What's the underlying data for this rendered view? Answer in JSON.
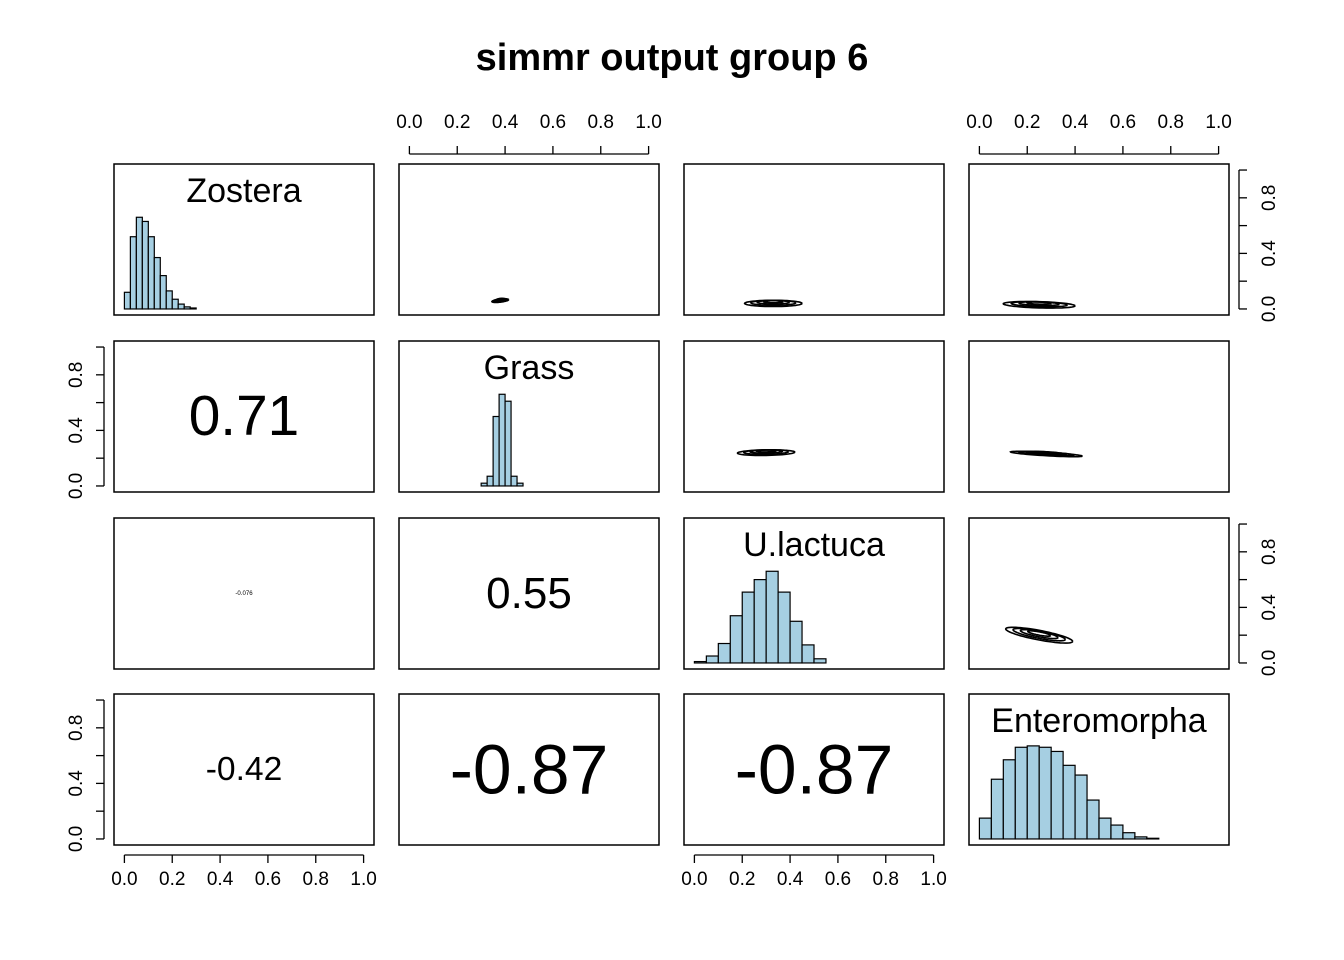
{
  "title": "simmr output group 6",
  "colors": {
    "hist_fill": "#a6cfe2",
    "stroke": "#000000",
    "background": "#ffffff"
  },
  "axis": {
    "range": [
      0,
      1
    ],
    "ticks": [
      0.0,
      0.2,
      0.4,
      0.6,
      0.8,
      1.0
    ],
    "tick_labels": [
      "0.0",
      "0.2",
      "0.4",
      "0.6",
      "0.8",
      "1.0"
    ]
  },
  "chart_data": {
    "type": "pairs",
    "title": "simmr output group 6",
    "variables": [
      "Zostera",
      "Grass",
      "U.lactuca",
      "Enteromorpha"
    ],
    "xlim": [
      0,
      1
    ],
    "ylim": [
      0,
      1
    ],
    "histograms": [
      {
        "name": "Zostera",
        "bins": [
          0.0,
          0.025,
          0.05,
          0.075,
          0.1,
          0.125,
          0.15,
          0.175,
          0.2,
          0.225,
          0.25,
          0.275,
          0.3
        ],
        "heights": [
          0.12,
          0.52,
          0.66,
          0.63,
          0.52,
          0.37,
          0.24,
          0.13,
          0.07,
          0.035,
          0.015,
          0.007
        ]
      },
      {
        "name": "Grass",
        "bins": [
          0.3,
          0.325,
          0.35,
          0.375,
          0.4,
          0.425,
          0.45,
          0.475
        ],
        "heights": [
          0.02,
          0.07,
          0.5,
          0.66,
          0.61,
          0.07,
          0.02
        ]
      },
      {
        "name": "U.lactuca",
        "bins": [
          0.0,
          0.05,
          0.1,
          0.15,
          0.2,
          0.25,
          0.3,
          0.35,
          0.4,
          0.45,
          0.5,
          0.55
        ],
        "heights": [
          0.01,
          0.05,
          0.14,
          0.34,
          0.51,
          0.6,
          0.66,
          0.51,
          0.3,
          0.13,
          0.03
        ]
      },
      {
        "name": "Enteromorpha",
        "bins": [
          0.0,
          0.05,
          0.1,
          0.15,
          0.2,
          0.25,
          0.3,
          0.35,
          0.4,
          0.45,
          0.5,
          0.55,
          0.6,
          0.65,
          0.7,
          0.75
        ],
        "heights": [
          0.15,
          0.43,
          0.57,
          0.66,
          0.67,
          0.66,
          0.63,
          0.53,
          0.46,
          0.28,
          0.15,
          0.1,
          0.045,
          0.015,
          0.005
        ]
      }
    ],
    "correlations": [
      {
        "row": 1,
        "col": 0,
        "pair": [
          "Grass",
          "Zostera"
        ],
        "value": "0.71"
      },
      {
        "row": 2,
        "col": 0,
        "pair": [
          "U.lactuca",
          "Zostera"
        ],
        "value": "-0.076"
      },
      {
        "row": 2,
        "col": 1,
        "pair": [
          "U.lactuca",
          "Grass"
        ],
        "value": "0.55"
      },
      {
        "row": 3,
        "col": 0,
        "pair": [
          "Enteromorpha",
          "Zostera"
        ],
        "value": "-0.42"
      },
      {
        "row": 3,
        "col": 1,
        "pair": [
          "Enteromorpha",
          "Grass"
        ],
        "value": "-0.87"
      },
      {
        "row": 3,
        "col": 2,
        "pair": [
          "Enteromorpha",
          "U.lactuca"
        ],
        "value": "-0.87"
      }
    ],
    "contours": [
      {
        "row": 0,
        "col": 1,
        "pair": [
          "Zostera",
          "Grass"
        ],
        "center": [
          0.38,
          0.06
        ],
        "spread": [
          0.07,
          0.022
        ],
        "slope": 0.2
      },
      {
        "row": 0,
        "col": 2,
        "pair": [
          "Zostera",
          "U.lactuca"
        ],
        "center": [
          0.33,
          0.04
        ],
        "spread": [
          0.24,
          0.045
        ],
        "slope": 0.0
      },
      {
        "row": 0,
        "col": 3,
        "pair": [
          "Zostera",
          "Enteromorpha"
        ],
        "center": [
          0.25,
          0.03
        ],
        "spread": [
          0.3,
          0.045
        ],
        "slope": -0.05
      },
      {
        "row": 1,
        "col": 2,
        "pair": [
          "Grass",
          "U.lactuca"
        ],
        "center": [
          0.3,
          0.24
        ],
        "spread": [
          0.24,
          0.04
        ],
        "slope": 0.03
      },
      {
        "row": 1,
        "col": 3,
        "pair": [
          "Grass",
          "Enteromorpha"
        ],
        "center": [
          0.28,
          0.23
        ],
        "spread": [
          0.3,
          0.025
        ],
        "slope": -0.1
      },
      {
        "row": 2,
        "col": 3,
        "pair": [
          "U.lactuca",
          "Enteromorpha"
        ],
        "center": [
          0.25,
          0.2
        ],
        "spread": [
          0.28,
          0.07
        ],
        "slope": -0.32
      }
    ]
  }
}
